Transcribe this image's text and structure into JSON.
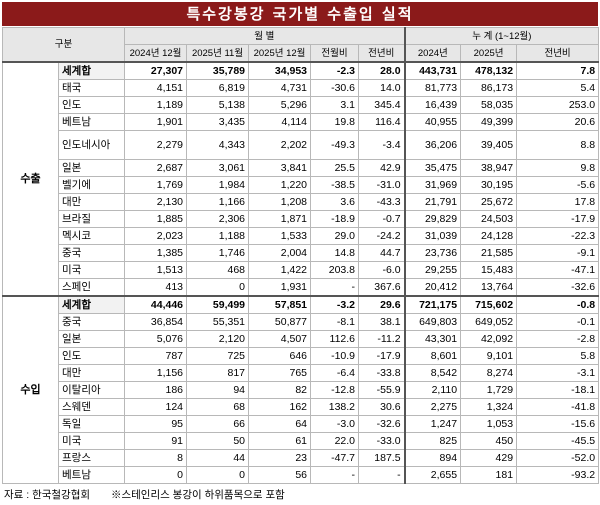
{
  "title": "특수강봉강 국가별 수출입 실적",
  "header": {
    "category": "구분",
    "monthly": "월 별",
    "cumulative": "누 계 (1~12월)",
    "cols": [
      "2024년 12월",
      "2025년 11월",
      "2025년 12월",
      "전월비",
      "전년비",
      "2024년",
      "2025년",
      "전년비"
    ]
  },
  "export": {
    "label": "수출",
    "rows": [
      {
        "name": "세계합",
        "v": [
          "27,307",
          "35,789",
          "34,953",
          "-2.3",
          "28.0",
          "443,731",
          "478,132",
          "7.8"
        ],
        "total": true
      },
      {
        "name": "태국",
        "v": [
          "4,151",
          "6,819",
          "4,731",
          "-30.6",
          "14.0",
          "81,773",
          "86,173",
          "5.4"
        ]
      },
      {
        "name": "인도",
        "v": [
          "1,189",
          "5,138",
          "5,296",
          "3.1",
          "345.4",
          "16,439",
          "58,035",
          "253.0"
        ]
      },
      {
        "name": "베트남",
        "v": [
          "1,901",
          "3,435",
          "4,114",
          "19.8",
          "116.4",
          "40,955",
          "49,399",
          "20.6"
        ]
      },
      {
        "name": "인도네시아",
        "v": [
          "2,279",
          "4,343",
          "2,202",
          "-49.3",
          "-3.4",
          "36,206",
          "39,405",
          "8.8"
        ],
        "tall": true
      },
      {
        "name": "일본",
        "v": [
          "2,687",
          "3,061",
          "3,841",
          "25.5",
          "42.9",
          "35,475",
          "38,947",
          "9.8"
        ]
      },
      {
        "name": "벨기에",
        "v": [
          "1,769",
          "1,984",
          "1,220",
          "-38.5",
          "-31.0",
          "31,969",
          "30,195",
          "-5.6"
        ]
      },
      {
        "name": "대만",
        "v": [
          "2,130",
          "1,166",
          "1,208",
          "3.6",
          "-43.3",
          "21,791",
          "25,672",
          "17.8"
        ]
      },
      {
        "name": "브라질",
        "v": [
          "1,885",
          "2,306",
          "1,871",
          "-18.9",
          "-0.7",
          "29,829",
          "24,503",
          "-17.9"
        ]
      },
      {
        "name": "멕시코",
        "v": [
          "2,023",
          "1,188",
          "1,533",
          "29.0",
          "-24.2",
          "31,039",
          "24,128",
          "-22.3"
        ]
      },
      {
        "name": "중국",
        "v": [
          "1,385",
          "1,746",
          "2,004",
          "14.8",
          "44.7",
          "23,736",
          "21,585",
          "-9.1"
        ]
      },
      {
        "name": "미국",
        "v": [
          "1,513",
          "468",
          "1,422",
          "203.8",
          "-6.0",
          "29,255",
          "15,483",
          "-47.1"
        ]
      },
      {
        "name": "스페인",
        "v": [
          "413",
          "0",
          "1,931",
          "-",
          "367.6",
          "20,412",
          "13,764",
          "-32.6"
        ]
      }
    ]
  },
  "import": {
    "label": "수입",
    "rows": [
      {
        "name": "세계합",
        "v": [
          "44,446",
          "59,499",
          "57,851",
          "-3.2",
          "29.6",
          "721,175",
          "715,602",
          "-0.8"
        ],
        "total": true
      },
      {
        "name": "중국",
        "v": [
          "36,854",
          "55,351",
          "50,877",
          "-8.1",
          "38.1",
          "649,803",
          "649,052",
          "-0.1"
        ]
      },
      {
        "name": "일본",
        "v": [
          "5,076",
          "2,120",
          "4,507",
          "112.6",
          "-11.2",
          "43,301",
          "42,092",
          "-2.8"
        ]
      },
      {
        "name": "인도",
        "v": [
          "787",
          "725",
          "646",
          "-10.9",
          "-17.9",
          "8,601",
          "9,101",
          "5.8"
        ]
      },
      {
        "name": "대만",
        "v": [
          "1,156",
          "817",
          "765",
          "-6.4",
          "-33.8",
          "8,542",
          "8,274",
          "-3.1"
        ]
      },
      {
        "name": "이탈리아",
        "v": [
          "186",
          "94",
          "82",
          "-12.8",
          "-55.9",
          "2,110",
          "1,729",
          "-18.1"
        ]
      },
      {
        "name": "스웨덴",
        "v": [
          "124",
          "68",
          "162",
          "138.2",
          "30.6",
          "2,275",
          "1,324",
          "-41.8"
        ]
      },
      {
        "name": "독일",
        "v": [
          "95",
          "66",
          "64",
          "-3.0",
          "-32.6",
          "1,247",
          "1,053",
          "-15.6"
        ]
      },
      {
        "name": "미국",
        "v": [
          "91",
          "50",
          "61",
          "22.0",
          "-33.0",
          "825",
          "450",
          "-45.5"
        ]
      },
      {
        "name": "프랑스",
        "v": [
          "8",
          "44",
          "23",
          "-47.7",
          "187.5",
          "894",
          "429",
          "-52.0"
        ]
      },
      {
        "name": "베트남",
        "v": [
          "0",
          "0",
          "56",
          "-",
          "-",
          "2,655",
          "181",
          "-93.2"
        ]
      }
    ]
  },
  "footer": {
    "source": "자료 : 한국철강협회",
    "note": "※스테인리스 봉강이 하위품목으로 포함"
  }
}
